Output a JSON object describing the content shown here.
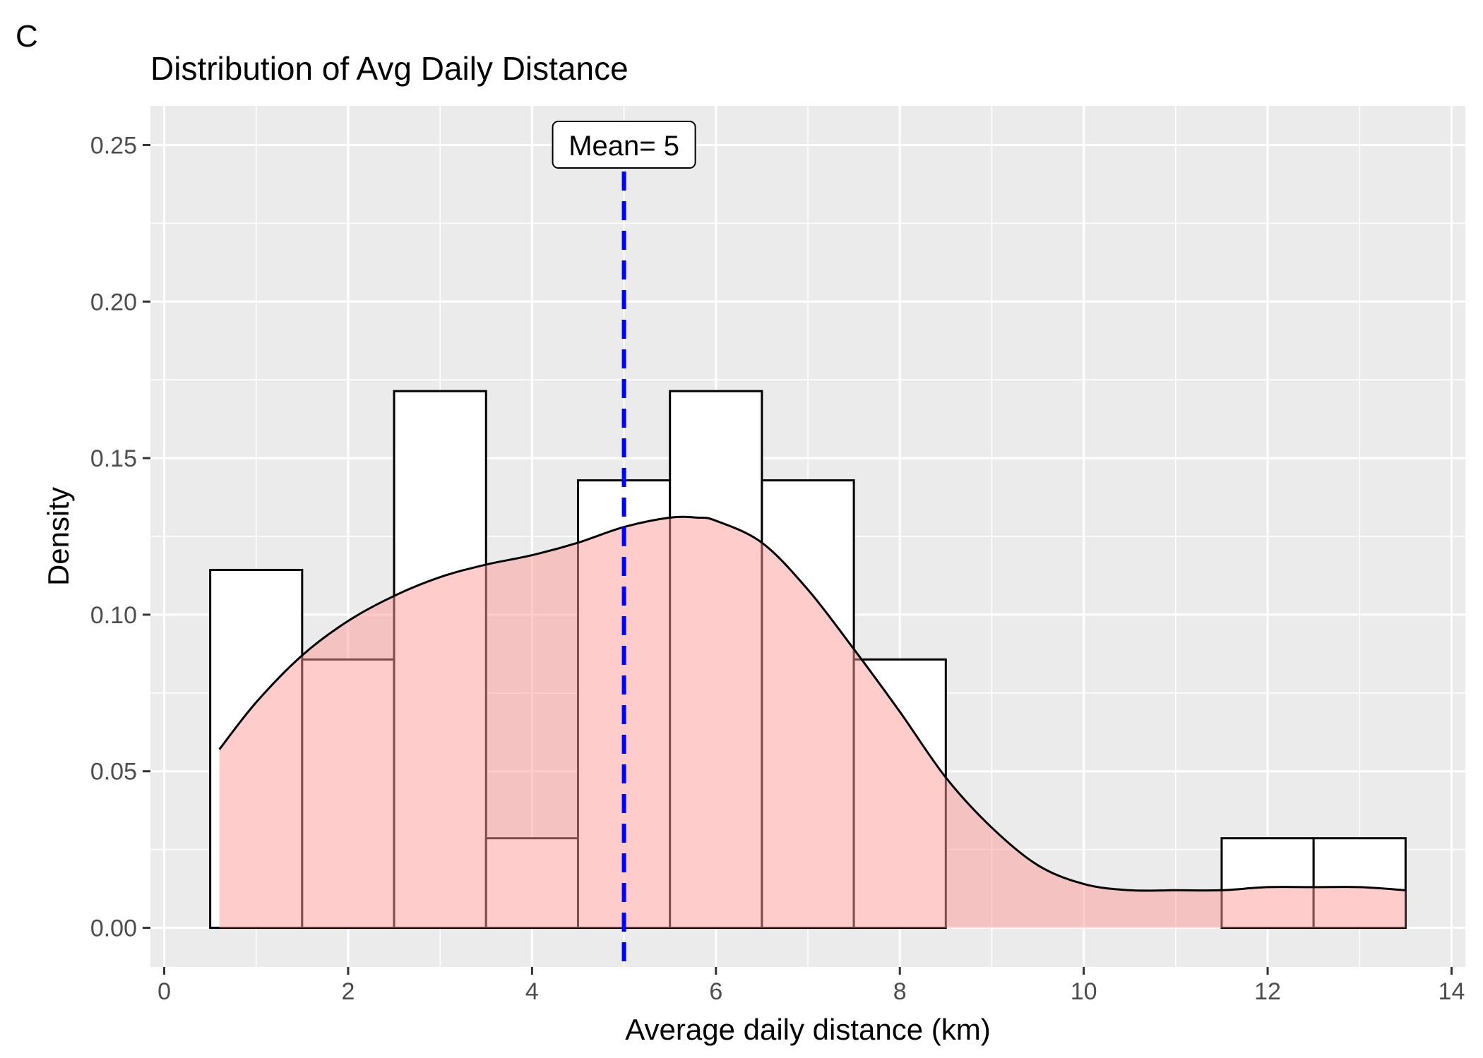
{
  "panel_label": "C",
  "chart_data": {
    "type": "histogram",
    "title": "Distribution of Avg Daily Distance",
    "xlabel": "Average daily distance (km)",
    "ylabel": "Density",
    "xlim": [
      -0.15,
      14.15
    ],
    "ylim": [
      -0.0125,
      0.2625
    ],
    "x_ticks": [
      0,
      2,
      4,
      6,
      8,
      10,
      12,
      14
    ],
    "x_tick_labels": [
      "0",
      "2",
      "4",
      "6",
      "8",
      "10",
      "12",
      "14"
    ],
    "y_ticks": [
      0,
      0.05,
      0.1,
      0.15,
      0.2,
      0.25
    ],
    "y_tick_labels": [
      "0.00",
      "0.05",
      "0.10",
      "0.15",
      "0.20",
      "0.25"
    ],
    "grid": true,
    "bins": [
      {
        "x0": 0.5,
        "x1": 1.5,
        "density": 0.1143
      },
      {
        "x0": 1.5,
        "x1": 2.5,
        "density": 0.0857
      },
      {
        "x0": 2.5,
        "x1": 3.5,
        "density": 0.1714
      },
      {
        "x0": 3.5,
        "x1": 4.5,
        "density": 0.0286
      },
      {
        "x0": 4.5,
        "x1": 5.5,
        "density": 0.1429
      },
      {
        "x0": 5.5,
        "x1": 6.5,
        "density": 0.1714
      },
      {
        "x0": 6.5,
        "x1": 7.5,
        "density": 0.1429
      },
      {
        "x0": 7.5,
        "x1": 8.5,
        "density": 0.0857
      },
      {
        "x0": 8.5,
        "x1": 9.5,
        "density": 0
      },
      {
        "x0": 9.5,
        "x1": 10.5,
        "density": 0
      },
      {
        "x0": 10.5,
        "x1": 11.5,
        "density": 0
      },
      {
        "x0": 11.5,
        "x1": 12.5,
        "density": 0.0286
      },
      {
        "x0": 12.5,
        "x1": 13.5,
        "density": 0.0286
      }
    ],
    "density_curve": {
      "x": [
        0.6,
        1.0,
        1.5,
        2.0,
        2.5,
        3.0,
        3.5,
        4.0,
        4.5,
        5.0,
        5.5,
        5.8,
        6.0,
        6.5,
        7.0,
        7.5,
        8.0,
        8.5,
        9.0,
        9.5,
        10.0,
        10.5,
        11.0,
        11.5,
        12.0,
        12.5,
        13.0,
        13.5
      ],
      "y": [
        0.057,
        0.072,
        0.087,
        0.098,
        0.106,
        0.112,
        0.116,
        0.119,
        0.123,
        0.128,
        0.131,
        0.131,
        0.13,
        0.123,
        0.108,
        0.089,
        0.069,
        0.048,
        0.032,
        0.02,
        0.014,
        0.012,
        0.012,
        0.012,
        0.013,
        0.013,
        0.013,
        0.012
      ]
    },
    "mean_line": {
      "x": 5,
      "label": "Mean= 5",
      "color": "#0000ff"
    },
    "colors": {
      "panel_background": "#ebebeb",
      "grid": "#ffffff",
      "bar_fill": "#ffffff",
      "bar_outline": "#000000",
      "density_fill": "#ff9999",
      "density_line": "#000000"
    }
  }
}
